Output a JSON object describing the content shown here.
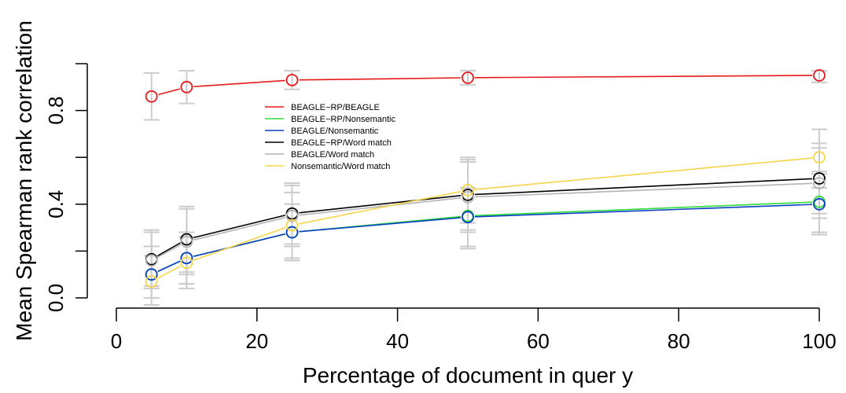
{
  "chart_data": {
    "type": "line",
    "title": "",
    "xlabel": "Percentage of document in quer y",
    "ylabel": "Mean Spearman rank correlation",
    "xlim": [
      0,
      100
    ],
    "ylim": [
      0,
      1
    ],
    "x_ticks": [
      0,
      20,
      40,
      60,
      80,
      100
    ],
    "x_tick_labels": [
      "0",
      "20",
      "40",
      "60",
      "80",
      "100"
    ],
    "y_ticks": [
      0.0,
      0.2,
      0.4,
      0.6,
      0.8,
      1.0
    ],
    "y_tick_labels": [
      "0.0",
      "",
      "0.4",
      "",
      "0.8",
      ""
    ],
    "x": [
      5,
      10,
      25,
      50,
      100
    ],
    "grid": false,
    "legend_position": "center-left",
    "error_bar_color": "#cccccc",
    "series": [
      {
        "name": "BEAGLE−RP/BEAGLE",
        "color": "#e8191a",
        "values": [
          0.86,
          0.9,
          0.93,
          0.94,
          0.95
        ],
        "err_low": [
          0.76,
          0.83,
          0.89,
          0.91,
          0.92
        ],
        "err_high": [
          0.96,
          0.97,
          0.97,
          0.97,
          0.97
        ]
      },
      {
        "name": "BEAGLE−RP/Nonsemantic",
        "color": "#2fdc3a",
        "values": [
          0.1,
          0.17,
          0.28,
          0.35,
          0.41
        ],
        "err_low": [
          0.0,
          0.06,
          0.16,
          0.22,
          0.28
        ],
        "err_high": [
          0.22,
          0.28,
          0.4,
          0.47,
          0.54
        ]
      },
      {
        "name": "BEAGLE/Nonsemantic",
        "color": "#0a3fc4",
        "values": [
          0.1,
          0.17,
          0.28,
          0.345,
          0.4
        ],
        "err_low": [
          0.0,
          0.06,
          0.16,
          0.21,
          0.27
        ],
        "err_high": [
          0.22,
          0.28,
          0.4,
          0.47,
          0.53
        ]
      },
      {
        "name": "BEAGLE−RP/Word match",
        "color": "#000000",
        "values": [
          0.165,
          0.25,
          0.36,
          0.44,
          0.51
        ],
        "err_low": [
          0.05,
          0.11,
          0.23,
          0.29,
          0.36
        ],
        "err_high": [
          0.29,
          0.39,
          0.49,
          0.6,
          0.66
        ]
      },
      {
        "name": "BEAGLE/Word match",
        "color": "#b4b4b4",
        "values": [
          0.16,
          0.24,
          0.35,
          0.43,
          0.49
        ],
        "err_low": [
          0.04,
          0.1,
          0.22,
          0.28,
          0.34
        ],
        "err_high": [
          0.28,
          0.38,
          0.48,
          0.58,
          0.64
        ]
      },
      {
        "name": "Nonsemantic/Word match",
        "color": "#f7d54a",
        "values": [
          0.07,
          0.15,
          0.31,
          0.46,
          0.6
        ],
        "err_low": [
          -0.03,
          0.04,
          0.17,
          0.32,
          0.47
        ],
        "err_high": [
          0.18,
          0.26,
          0.45,
          0.59,
          0.72
        ]
      }
    ]
  }
}
